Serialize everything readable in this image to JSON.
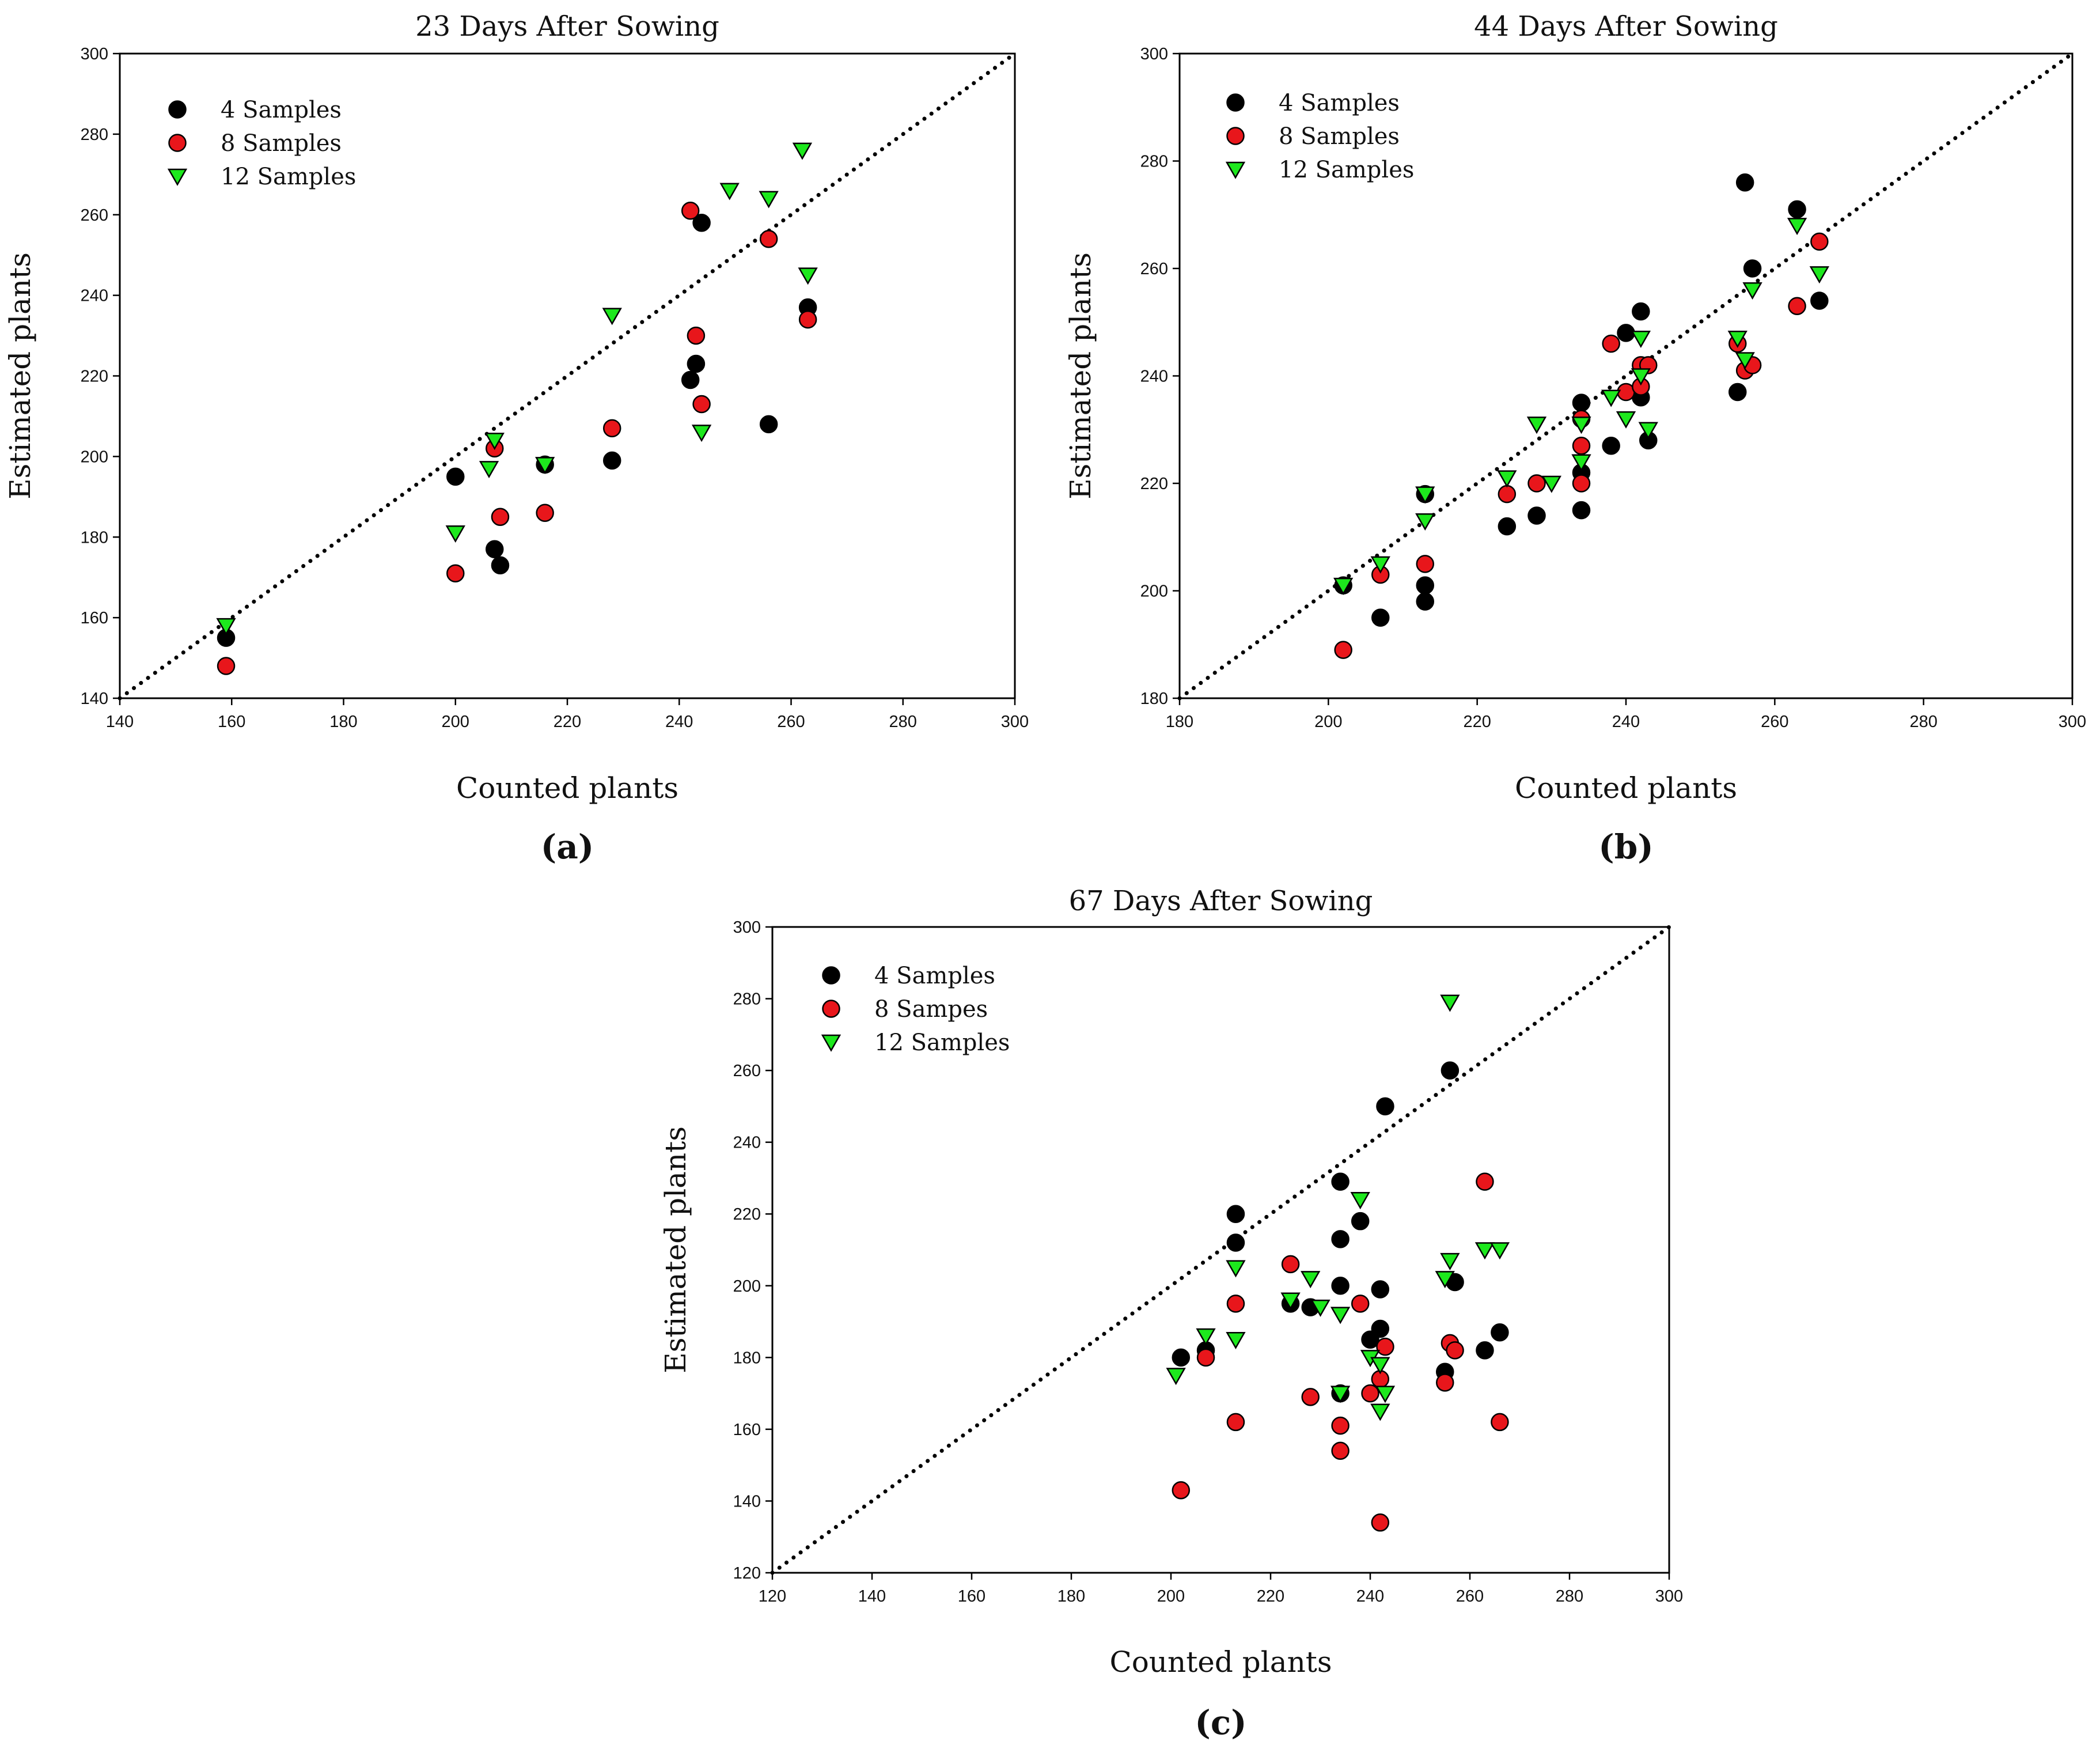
{
  "colors": {
    "four_samples": "#000000",
    "eight_samples": "#e8161b",
    "twelve_samples": "#1de81d",
    "marker_edge": "#000000",
    "identity_line": "#000000"
  },
  "chart_data": [
    {
      "type": "scatter",
      "panel_label": "(a)",
      "title": "23 Days After Sowing",
      "xlabel": "Counted plants",
      "ylabel": "Estimated plants",
      "xlim": [
        140,
        300
      ],
      "ylim": [
        140,
        300
      ],
      "xticks": [
        "140",
        "160",
        "180",
        "200",
        "220",
        "240",
        "260",
        "280",
        "300"
      ],
      "yticks": [
        "140",
        "160",
        "180",
        "200",
        "220",
        "240",
        "260",
        "280",
        "300"
      ],
      "reference_line": "y = x (dotted)",
      "legend_position": "top-left",
      "series": [
        {
          "name": "4 Samples",
          "marker": "circle",
          "color_key": "four_samples",
          "points": [
            [
              159,
              155
            ],
            [
              200,
              195
            ],
            [
              207,
              177
            ],
            [
              208,
              173
            ],
            [
              216,
              198
            ],
            [
              228,
              199
            ],
            [
              242,
              219
            ],
            [
              243,
              223
            ],
            [
              244,
              258
            ],
            [
              256,
              208
            ],
            [
              263,
              237
            ]
          ]
        },
        {
          "name": "8 Samples",
          "marker": "circle",
          "color_key": "eight_samples",
          "points": [
            [
              159,
              148
            ],
            [
              200,
              171
            ],
            [
              207,
              202
            ],
            [
              208,
              185
            ],
            [
              216,
              186
            ],
            [
              228,
              207
            ],
            [
              242,
              261
            ],
            [
              243,
              230
            ],
            [
              244,
              213
            ],
            [
              256,
              254
            ],
            [
              263,
              234
            ]
          ]
        },
        {
          "name": "12 Samples",
          "marker": "triangle-down",
          "color_key": "twelve_samples",
          "points": [
            [
              159,
              158
            ],
            [
              200,
              181
            ],
            [
              206,
              197
            ],
            [
              207,
              204
            ],
            [
              216,
              198
            ],
            [
              228,
              235
            ],
            [
              244,
              206
            ],
            [
              249,
              266
            ],
            [
              256,
              264
            ],
            [
              262,
              276
            ],
            [
              263,
              245
            ]
          ]
        }
      ]
    },
    {
      "type": "scatter",
      "panel_label": "(b)",
      "title": "44 Days After Sowing",
      "xlabel": "Counted plants",
      "ylabel": "Estimated plants",
      "xlim": [
        180,
        300
      ],
      "ylim": [
        180,
        300
      ],
      "xticks": [
        "180",
        "200",
        "220",
        "240",
        "260",
        "280",
        "300"
      ],
      "yticks": [
        "180",
        "200",
        "220",
        "240",
        "260",
        "280",
        "300"
      ],
      "reference_line": "y = x (dotted)",
      "legend_position": "top-left",
      "series": [
        {
          "name": "4 Samples",
          "marker": "circle",
          "color_key": "four_samples",
          "points": [
            [
              202,
              201
            ],
            [
              207,
              195
            ],
            [
              213,
              201
            ],
            [
              213,
              198
            ],
            [
              213,
              218
            ],
            [
              224,
              212
            ],
            [
              228,
              214
            ],
            [
              234,
              235
            ],
            [
              234,
              222
            ],
            [
              234,
              215
            ],
            [
              238,
              227
            ],
            [
              240,
              248
            ],
            [
              242,
              252
            ],
            [
              242,
              236
            ],
            [
              243,
              228
            ],
            [
              255,
              237
            ],
            [
              256,
              276
            ],
            [
              257,
              260
            ],
            [
              263,
              271
            ],
            [
              266,
              254
            ]
          ]
        },
        {
          "name": "8 Samples",
          "marker": "circle",
          "color_key": "eight_samples",
          "points": [
            [
              202,
              189
            ],
            [
              207,
              203
            ],
            [
              213,
              205
            ],
            [
              224,
              218
            ],
            [
              228,
              220
            ],
            [
              234,
              232
            ],
            [
              234,
              227
            ],
            [
              234,
              220
            ],
            [
              238,
              246
            ],
            [
              240,
              237
            ],
            [
              242,
              242
            ],
            [
              242,
              238
            ],
            [
              243,
              242
            ],
            [
              255,
              246
            ],
            [
              256,
              241
            ],
            [
              257,
              242
            ],
            [
              263,
              253
            ],
            [
              266,
              265
            ]
          ]
        },
        {
          "name": "12 Samples",
          "marker": "triangle-down",
          "color_key": "twelve_samples",
          "points": [
            [
              202,
              201
            ],
            [
              207,
              205
            ],
            [
              213,
              218
            ],
            [
              213,
              213
            ],
            [
              224,
              221
            ],
            [
              228,
              231
            ],
            [
              230,
              220
            ],
            [
              234,
              224
            ],
            [
              234,
              231
            ],
            [
              238,
              236
            ],
            [
              240,
              232
            ],
            [
              242,
              247
            ],
            [
              242,
              240
            ],
            [
              243,
              230
            ],
            [
              255,
              247
            ],
            [
              256,
              243
            ],
            [
              257,
              256
            ],
            [
              263,
              268
            ],
            [
              266,
              259
            ]
          ]
        }
      ]
    },
    {
      "type": "scatter",
      "panel_label": "(c)",
      "title": "67 Days After Sowing",
      "xlabel": "Counted plants",
      "ylabel": "Estimated plants",
      "xlim": [
        120,
        300
      ],
      "ylim": [
        120,
        300
      ],
      "xticks": [
        "120",
        "140",
        "160",
        "180",
        "200",
        "220",
        "240",
        "260",
        "280",
        "300"
      ],
      "yticks": [
        "120",
        "140",
        "160",
        "180",
        "200",
        "220",
        "240",
        "260",
        "280",
        "300"
      ],
      "reference_line": "y = x (dotted)",
      "legend_position": "top-left",
      "series": [
        {
          "name": "4 Samples",
          "marker": "circle",
          "color_key": "four_samples",
          "points": [
            [
              202,
              180
            ],
            [
              207,
              182
            ],
            [
              213,
              220
            ],
            [
              213,
              212
            ],
            [
              224,
              195
            ],
            [
              228,
              194
            ],
            [
              234,
              229
            ],
            [
              234,
              213
            ],
            [
              234,
              200
            ],
            [
              234,
              170
            ],
            [
              238,
              218
            ],
            [
              240,
              185
            ],
            [
              242,
              199
            ],
            [
              242,
              188
            ],
            [
              243,
              250
            ],
            [
              255,
              176
            ],
            [
              256,
              260
            ],
            [
              257,
              201
            ],
            [
              263,
              182
            ],
            [
              266,
              187
            ]
          ]
        },
        {
          "name": "8 Sampes",
          "marker": "circle",
          "color_key": "eight_samples",
          "points": [
            [
              202,
              143
            ],
            [
              207,
              180
            ],
            [
              213,
              195
            ],
            [
              213,
              162
            ],
            [
              224,
              206
            ],
            [
              228,
              169
            ],
            [
              234,
              161
            ],
            [
              234,
              154
            ],
            [
              238,
              195
            ],
            [
              240,
              170
            ],
            [
              242,
              174
            ],
            [
              242,
              134
            ],
            [
              243,
              183
            ],
            [
              255,
              173
            ],
            [
              256,
              184
            ],
            [
              257,
              182
            ],
            [
              263,
              229
            ],
            [
              266,
              162
            ]
          ]
        },
        {
          "name": "12 Samples",
          "marker": "triangle-down",
          "color_key": "twelve_samples",
          "points": [
            [
              201,
              175
            ],
            [
              207,
              186
            ],
            [
              213,
              205
            ],
            [
              213,
              185
            ],
            [
              224,
              196
            ],
            [
              228,
              202
            ],
            [
              230,
              194
            ],
            [
              234,
              192
            ],
            [
              234,
              170
            ],
            [
              238,
              224
            ],
            [
              240,
              180
            ],
            [
              242,
              178
            ],
            [
              242,
              165
            ],
            [
              243,
              170
            ],
            [
              255,
              202
            ],
            [
              256,
              207
            ],
            [
              256,
              279
            ],
            [
              263,
              210
            ],
            [
              266,
              210
            ]
          ]
        }
      ]
    }
  ]
}
